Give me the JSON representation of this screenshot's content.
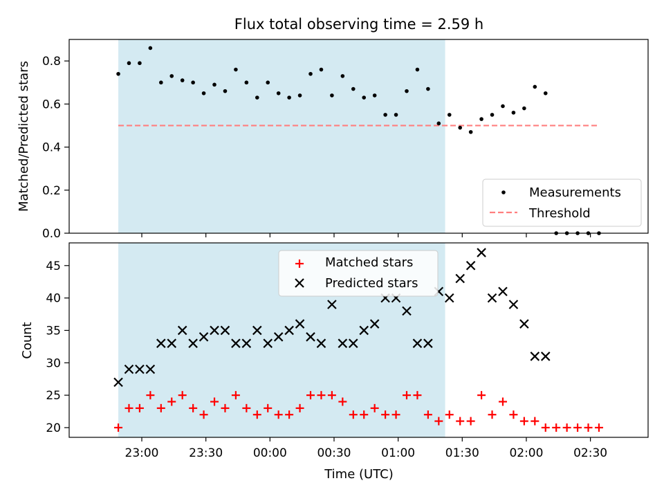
{
  "chart_data": [
    {
      "type": "scatter",
      "title": "Flux total observing time = 2.59 h",
      "ylabel": "Matched/Predicted stars",
      "xlabel": "",
      "ylim": [
        0,
        0.9
      ],
      "yticks": [
        "0.0",
        "0.2",
        "0.4",
        "0.6",
        "0.8"
      ],
      "grid": false,
      "legend_position": "lower-right",
      "shaded_time_range": [
        "22:49",
        "01:22"
      ],
      "shade_color": "#add8e6",
      "series": [
        {
          "name": "Measurements",
          "color": "#000000",
          "marker": "dot",
          "x": [
            "22:49",
            "22:54",
            "22:59",
            "23:04",
            "23:09",
            "23:14",
            "23:19",
            "23:24",
            "23:29",
            "23:34",
            "23:39",
            "23:44",
            "23:49",
            "23:54",
            "23:59",
            "00:04",
            "00:09",
            "00:14",
            "00:19",
            "00:24",
            "00:29",
            "00:34",
            "00:39",
            "00:44",
            "00:49",
            "00:54",
            "00:59",
            "01:04",
            "01:09",
            "01:14",
            "01:19",
            "01:24",
            "01:29",
            "01:34",
            "01:39",
            "01:44",
            "01:49",
            "01:54",
            "01:59",
            "02:04",
            "02:09",
            "02:14",
            "02:19",
            "02:24",
            "02:29",
            "02:34"
          ],
          "y": [
            0.74,
            0.79,
            0.79,
            0.86,
            0.7,
            0.73,
            0.71,
            0.7,
            0.65,
            0.69,
            0.66,
            0.76,
            0.7,
            0.63,
            0.7,
            0.65,
            0.63,
            0.64,
            0.74,
            0.76,
            0.64,
            0.73,
            0.67,
            0.63,
            0.64,
            0.55,
            0.55,
            0.66,
            0.76,
            0.67,
            0.51,
            0.55,
            0.49,
            0.47,
            0.53,
            0.55,
            0.59,
            0.56,
            0.58,
            0.68,
            0.65,
            0.0,
            0.0,
            0.0,
            0.0,
            0.0
          ]
        },
        {
          "name": "Threshold",
          "color": "#ff7f7f",
          "style": "dashed",
          "x": [
            "22:49",
            "02:34"
          ],
          "y": [
            0.5,
            0.5
          ]
        }
      ]
    },
    {
      "type": "scatter",
      "title": "",
      "ylabel": "Count",
      "xlabel": "Time (UTC)",
      "ylim": [
        18.5,
        48.5
      ],
      "yticks": [
        "20",
        "25",
        "30",
        "35",
        "40",
        "45"
      ],
      "xticks": [
        "23:00",
        "23:30",
        "00:00",
        "00:30",
        "01:00",
        "01:30",
        "02:00",
        "02:30"
      ],
      "grid": false,
      "legend_position": "upper-center",
      "shaded_time_range": [
        "22:49",
        "01:22"
      ],
      "shade_color": "#add8e6",
      "series": [
        {
          "name": "Matched stars",
          "color": "#ff0000",
          "marker": "plus",
          "x": [
            "22:49",
            "22:54",
            "22:59",
            "23:04",
            "23:09",
            "23:14",
            "23:19",
            "23:24",
            "23:29",
            "23:34",
            "23:39",
            "23:44",
            "23:49",
            "23:54",
            "23:59",
            "00:04",
            "00:09",
            "00:14",
            "00:19",
            "00:24",
            "00:29",
            "00:34",
            "00:39",
            "00:44",
            "00:49",
            "00:54",
            "00:59",
            "01:04",
            "01:09",
            "01:14",
            "01:19",
            "01:24",
            "01:29",
            "01:34",
            "01:39",
            "01:44",
            "01:49",
            "01:54",
            "01:59",
            "02:04",
            "02:09",
            "02:14",
            "02:19",
            "02:24",
            "02:29",
            "02:34"
          ],
          "y": [
            20,
            23,
            23,
            25,
            23,
            24,
            25,
            23,
            22,
            24,
            23,
            25,
            23,
            22,
            23,
            22,
            22,
            23,
            25,
            25,
            25,
            24,
            22,
            22,
            23,
            22,
            22,
            25,
            25,
            22,
            21,
            22,
            21,
            21,
            25,
            22,
            24,
            22,
            21,
            21,
            20,
            20,
            20,
            20,
            20,
            20
          ]
        },
        {
          "name": "Predicted stars",
          "color": "#000000",
          "marker": "x",
          "x": [
            "22:49",
            "22:54",
            "22:59",
            "23:04",
            "23:09",
            "23:14",
            "23:19",
            "23:24",
            "23:29",
            "23:34",
            "23:39",
            "23:44",
            "23:49",
            "23:54",
            "23:59",
            "00:04",
            "00:09",
            "00:14",
            "00:19",
            "00:24",
            "00:29",
            "00:34",
            "00:39",
            "00:44",
            "00:49",
            "00:54",
            "00:59",
            "01:04",
            "01:09",
            "01:14",
            "01:19",
            "01:24",
            "01:29",
            "01:34",
            "01:39",
            "01:44",
            "01:49",
            "01:54",
            "01:59",
            "02:04",
            "02:09"
          ],
          "y": [
            27,
            29,
            29,
            29,
            33,
            33,
            35,
            33,
            34,
            35,
            35,
            33,
            33,
            35,
            33,
            34,
            35,
            36,
            34,
            33,
            39,
            33,
            33,
            35,
            36,
            40,
            40,
            38,
            33,
            33,
            41,
            40,
            43,
            45,
            47,
            40,
            41,
            39,
            36,
            31,
            31
          ]
        }
      ]
    }
  ]
}
